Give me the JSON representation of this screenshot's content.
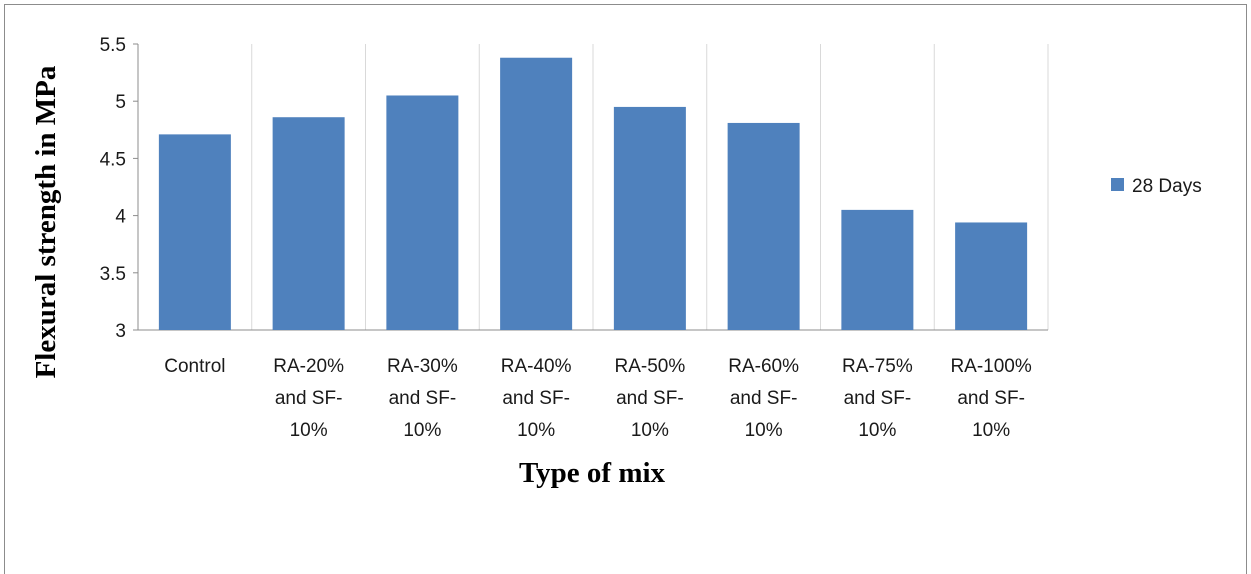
{
  "chart_data": {
    "type": "bar",
    "categories": [
      [
        "Control"
      ],
      [
        "RA-20%",
        "and SF-",
        "10%"
      ],
      [
        "RA-30%",
        "and SF-",
        "10%"
      ],
      [
        "RA-40%",
        "and SF-",
        "10%"
      ],
      [
        "RA-50%",
        "and SF-",
        "10%"
      ],
      [
        "RA-60%",
        "and SF-",
        "10%"
      ],
      [
        "RA-75%",
        "and SF-",
        "10%"
      ],
      [
        "RA-100%",
        "and SF-",
        "10%"
      ]
    ],
    "series": [
      {
        "name": "28 Days",
        "values": [
          4.71,
          4.86,
          5.05,
          5.38,
          4.95,
          4.81,
          4.05,
          3.94
        ],
        "color": "#4f81bd"
      }
    ],
    "xlabel": "Type of mix",
    "ylabel": "Flexural strength in MPa",
    "ylim": [
      3,
      5.5
    ],
    "yticks": [
      "3",
      "3.5",
      "4",
      "4.5",
      "5",
      "5.5"
    ],
    "grid": "vertical",
    "legend": "right"
  }
}
